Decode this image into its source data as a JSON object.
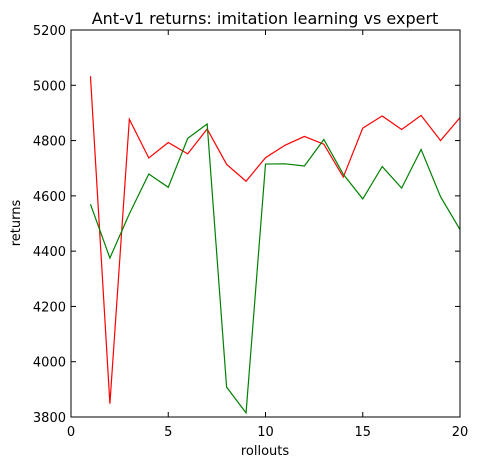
{
  "chart_data": {
    "type": "line",
    "title": "Ant-v1 returns: imitation learning vs expert",
    "xlabel": "rollouts",
    "ylabel": "returns",
    "xlim": [
      0,
      20
    ],
    "ylim": [
      3800,
      5200
    ],
    "xticks": [
      0,
      5,
      10,
      15,
      20
    ],
    "yticks": [
      3800,
      4000,
      4200,
      4400,
      4600,
      4800,
      5000,
      5200
    ],
    "grid": false,
    "legend": "none",
    "x": [
      1,
      2,
      3,
      4,
      5,
      6,
      7,
      8,
      9,
      10,
      11,
      12,
      13,
      14,
      15,
      16,
      17,
      18,
      19,
      20
    ],
    "series": [
      {
        "color": "#ff0000",
        "values": [
          5033,
          3848,
          4877,
          4737,
          4793,
          4752,
          4842,
          4714,
          4653,
          4738,
          4783,
          4815,
          4787,
          4668,
          4845,
          4889,
          4840,
          4891,
          4800,
          4883
        ]
      },
      {
        "color": "#008000",
        "values": [
          4570,
          4375,
          4535,
          4679,
          4631,
          4808,
          4860,
          3908,
          3815,
          4715,
          4716,
          4708,
          4804,
          4678,
          4589,
          4706,
          4628,
          4768,
          4597,
          4478
        ]
      }
    ]
  }
}
